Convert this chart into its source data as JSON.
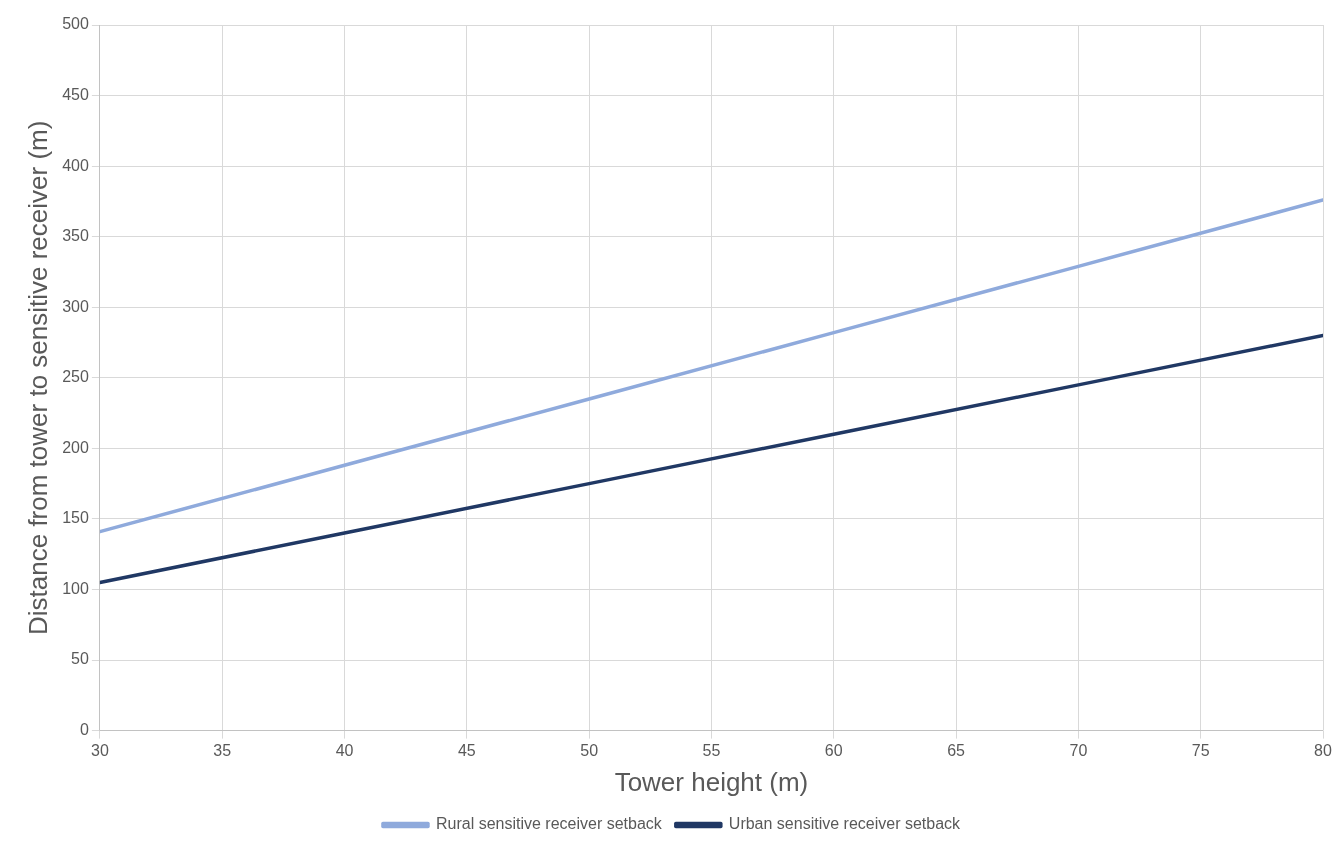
{
  "chart_data": {
    "type": "line",
    "xlabel": "Tower height (m)",
    "ylabel": "Distance from tower to sensitive receiver (m)",
    "x": [
      30,
      40,
      50,
      60,
      70,
      80
    ],
    "series": [
      {
        "name": "Rural sensitive receiver setback",
        "color": "#8faadc",
        "values": [
          141,
          188,
          235,
          282,
          329,
          376
        ]
      },
      {
        "name": "Urban sensitive receiver setback",
        "color": "#203864",
        "values": [
          105,
          140,
          175,
          210,
          245,
          280
        ]
      }
    ],
    "xlim": [
      30,
      80
    ],
    "xticks": [
      30,
      35,
      40,
      45,
      50,
      55,
      60,
      65,
      70,
      75,
      80
    ],
    "ylim": [
      0,
      500
    ],
    "yticks": [
      0,
      50,
      100,
      150,
      200,
      250,
      300,
      350,
      400,
      450,
      500
    ],
    "grid": true,
    "legend": "bottom",
    "marker": "none",
    "line_style": "solid"
  }
}
